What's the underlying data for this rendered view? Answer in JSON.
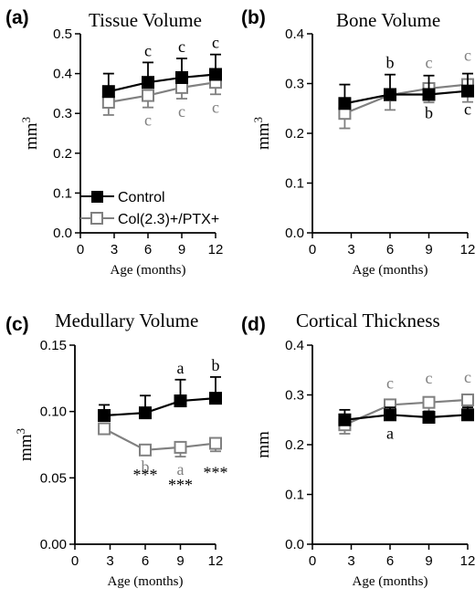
{
  "colors": {
    "control": "#000000",
    "treated": "#808080",
    "background": "#ffffff"
  },
  "legend": {
    "control": "Control",
    "treated": "Col(2.3)+/PTX+"
  },
  "chart_data": [
    {
      "type": "line",
      "panel": "(a)",
      "title": "Tissue Volume",
      "xlabel": "Age (months)",
      "ylabel": "mm3",
      "xlim": [
        0,
        12
      ],
      "ylim": [
        0,
        0.5
      ],
      "xticks": [
        "0",
        "3",
        "6",
        "9",
        "12"
      ],
      "yticks": [
        "0.0",
        "0.1",
        "0.2",
        "0.3",
        "0.4",
        "0.5"
      ],
      "x": [
        2.5,
        6,
        9,
        12
      ],
      "series": [
        {
          "name": "Control",
          "values": [
            0.355,
            0.378,
            0.39,
            0.398
          ],
          "errors": [
            0.045,
            0.05,
            0.048,
            0.05
          ],
          "annotations": [
            "",
            "c",
            "c",
            "c"
          ]
        },
        {
          "name": "Col(2.3)+/PTX+",
          "values": [
            0.328,
            0.345,
            0.365,
            0.378
          ],
          "errors": [
            0.032,
            0.03,
            0.028,
            0.03
          ],
          "annotations": [
            "",
            "c",
            "c",
            "c"
          ]
        }
      ]
    },
    {
      "type": "line",
      "panel": "(b)",
      "title": "Bone Volume",
      "xlabel": "Age (months)",
      "ylabel": "mm3",
      "xlim": [
        0,
        12
      ],
      "ylim": [
        0,
        0.4
      ],
      "xticks": [
        "0",
        "3",
        "6",
        "9",
        "12"
      ],
      "yticks": [
        "0.0",
        "0.1",
        "0.2",
        "0.3",
        "0.4"
      ],
      "x": [
        2.5,
        6,
        9,
        12
      ],
      "series": [
        {
          "name": "Control",
          "values": [
            0.26,
            0.278,
            0.278,
            0.285
          ],
          "errors": [
            0.038,
            0.04,
            0.038,
            0.035
          ],
          "annotations": [
            "",
            "b",
            "b",
            "c"
          ]
        },
        {
          "name": "Col(2.3)+/PTX+",
          "values": [
            0.24,
            0.277,
            0.29,
            0.298
          ],
          "errors": [
            0.03,
            0.03,
            0.028,
            0.035
          ],
          "annotations": [
            "",
            "",
            "c",
            "c"
          ]
        }
      ]
    },
    {
      "type": "line",
      "panel": "(c)",
      "title": "Medullary Volume",
      "xlabel": "Age (months)",
      "ylabel": "mm3",
      "xlim": [
        0,
        12
      ],
      "ylim": [
        0,
        0.15
      ],
      "xticks": [
        "0",
        "3",
        "6",
        "9",
        "12"
      ],
      "yticks": [
        "0.00",
        "0.05",
        "0.10",
        "0.15"
      ],
      "x": [
        2.5,
        6,
        9,
        12
      ],
      "series": [
        {
          "name": "Control",
          "values": [
            0.097,
            0.099,
            0.108,
            0.11
          ],
          "errors": [
            0.008,
            0.013,
            0.016,
            0.016
          ],
          "annotations": [
            "",
            "",
            "a",
            "b"
          ]
        },
        {
          "name": "Col(2.3)+/PTX+",
          "values": [
            0.087,
            0.071,
            0.073,
            0.076
          ],
          "errors": [
            0.004,
            0.003,
            0.007,
            0.006
          ],
          "annotations": [
            "",
            "b",
            "a",
            ""
          ],
          "significance": [
            "",
            "***",
            "***",
            "***"
          ]
        }
      ]
    },
    {
      "type": "line",
      "panel": "(d)",
      "title": "Cortical Thickness",
      "xlabel": "Age (months)",
      "ylabel": "mm",
      "xlim": [
        0,
        12
      ],
      "ylim": [
        0,
        0.4
      ],
      "xticks": [
        "0",
        "3",
        "6",
        "9",
        "12"
      ],
      "yticks": [
        "0.0",
        "0.1",
        "0.2",
        "0.3",
        "0.4"
      ],
      "x": [
        2.5,
        6,
        9,
        12
      ],
      "series": [
        {
          "name": "Control",
          "values": [
            0.25,
            0.26,
            0.255,
            0.26
          ],
          "errors": [
            0.02,
            0.015,
            0.012,
            0.015
          ],
          "annotations": [
            "",
            "a",
            "",
            ""
          ]
        },
        {
          "name": "Col(2.3)+/PTX+",
          "values": [
            0.24,
            0.28,
            0.285,
            0.29
          ],
          "errors": [
            0.018,
            0.02,
            0.025,
            0.022
          ],
          "annotations": [
            "",
            "c",
            "c",
            "c"
          ]
        }
      ]
    }
  ]
}
